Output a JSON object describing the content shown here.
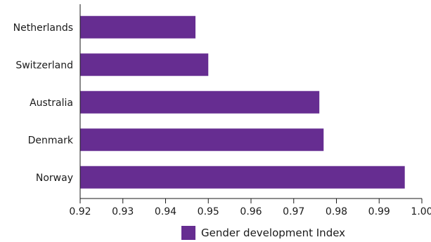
{
  "chart_data": {
    "type": "bar",
    "orientation": "horizontal",
    "categories": [
      "Netherlands",
      "Switzerland",
      "Australia",
      "Denmark",
      "Norway"
    ],
    "series": [
      {
        "name": "Gender development Index",
        "values": [
          0.947,
          0.95,
          0.976,
          0.977,
          0.996
        ]
      }
    ],
    "xlim": [
      0.92,
      1.0
    ],
    "xticks": [
      "0.92",
      "0.93",
      "0.94",
      "0.95",
      "0.96",
      "0.97",
      "0.98",
      "0.99",
      "1.00"
    ],
    "title": "",
    "xlabel": "",
    "ylabel": "",
    "grid": false,
    "legend": {
      "position": "bottom",
      "entries": [
        "Gender development Index"
      ]
    },
    "colors": {
      "bar": "#662d91"
    }
  }
}
